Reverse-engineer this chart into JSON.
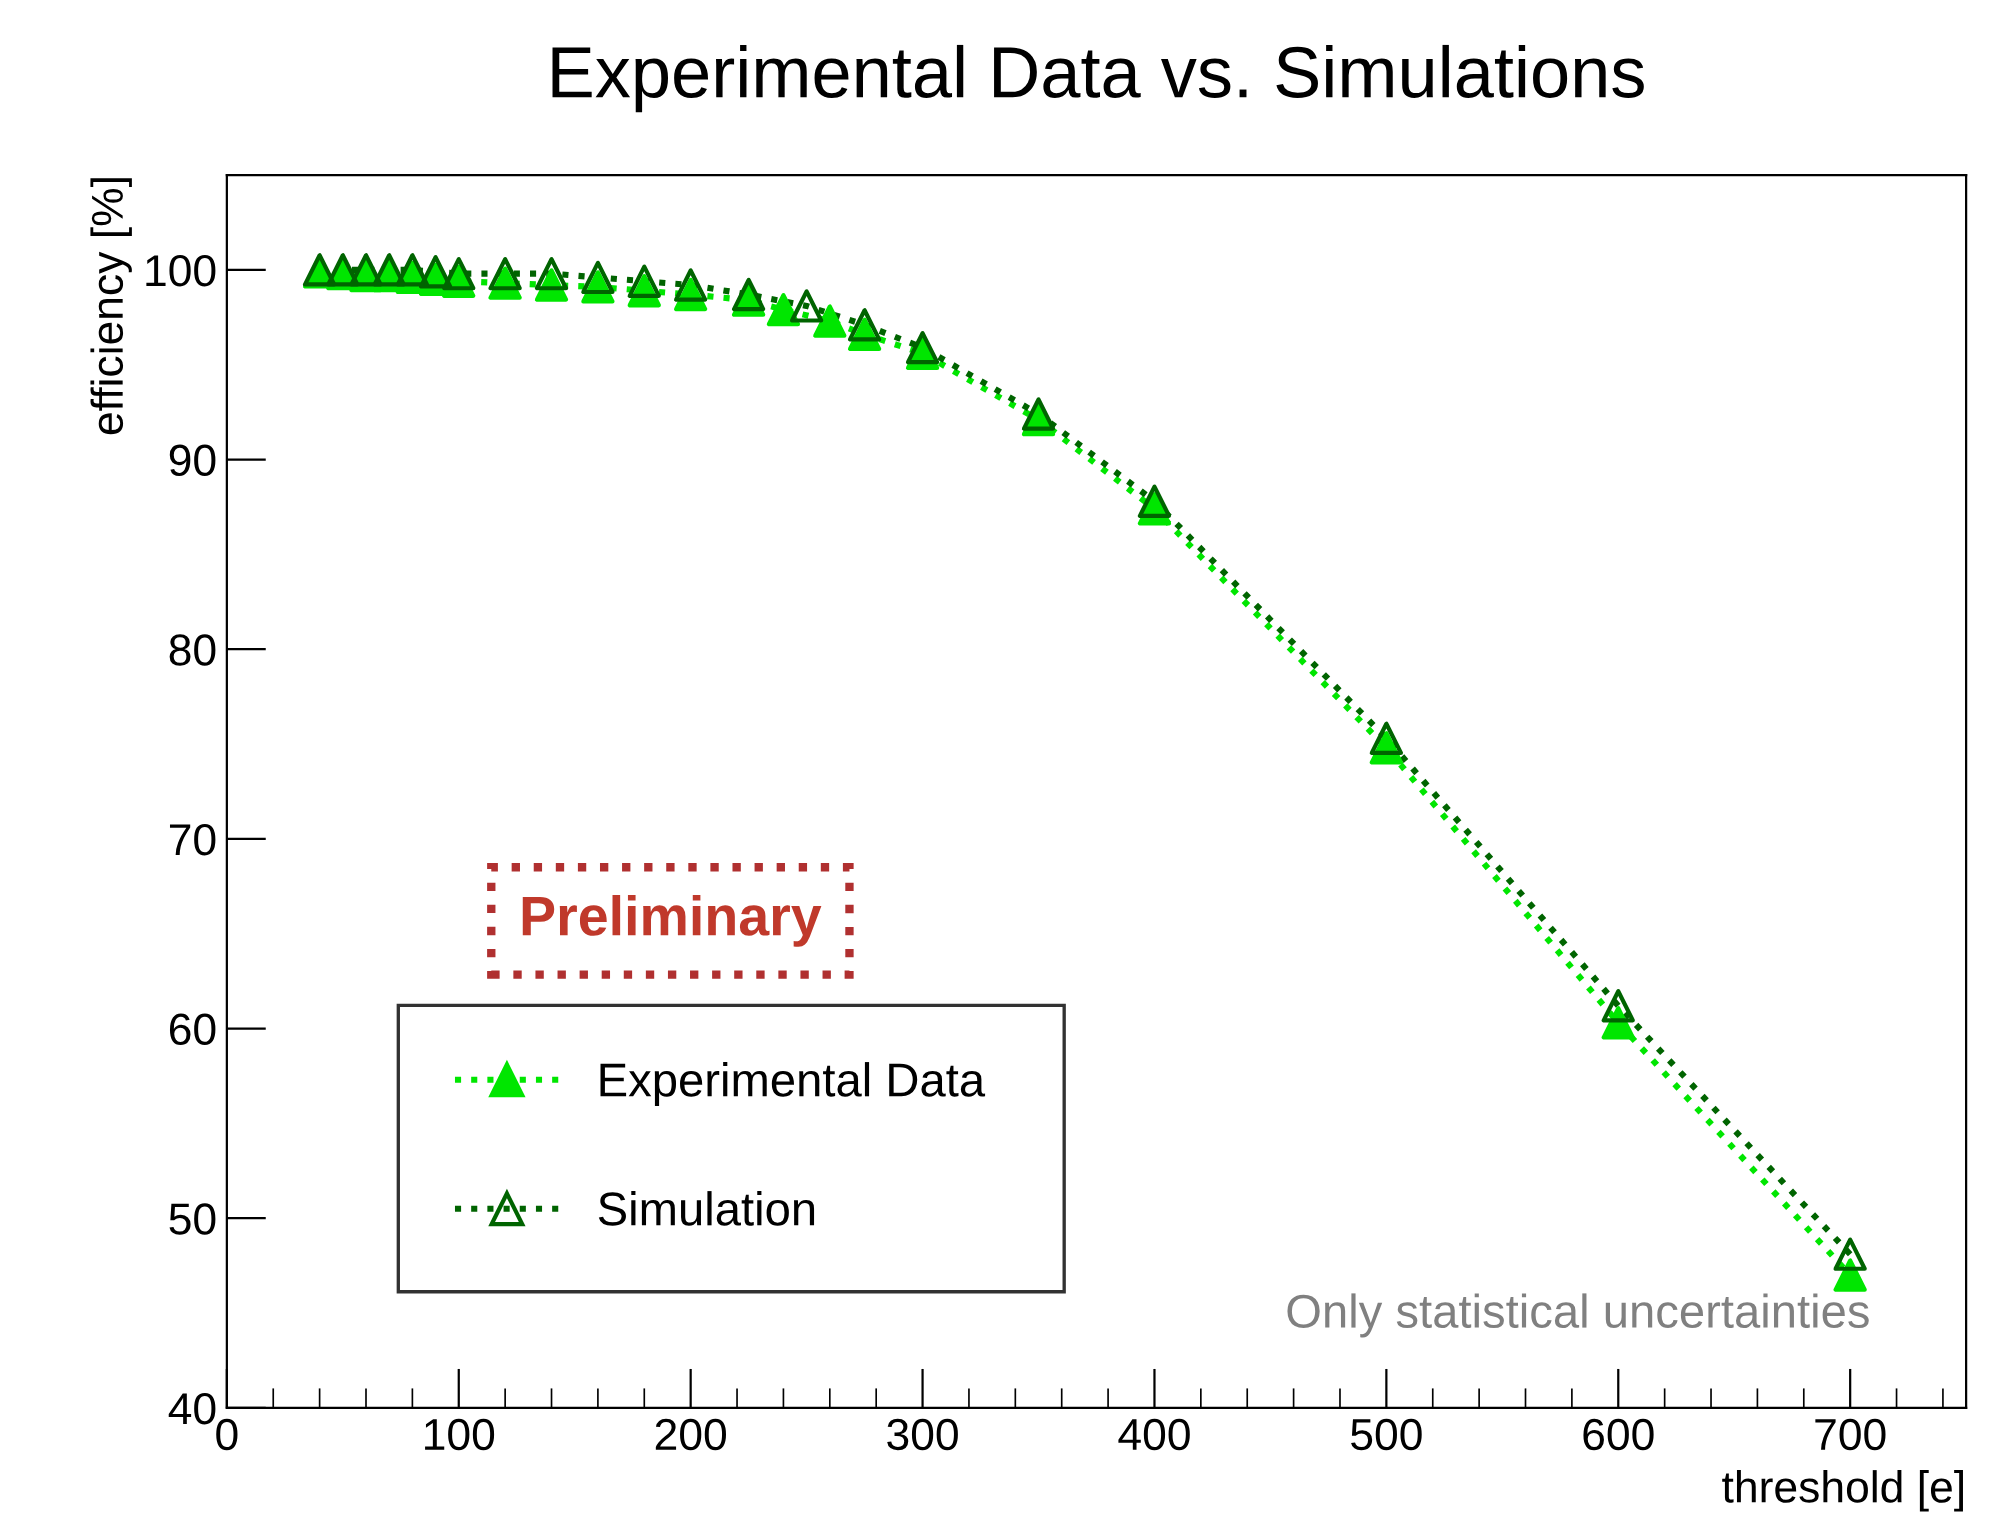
{
  "chart_data": {
    "type": "line",
    "title": "Experimental Data vs. Simulations",
    "xlabel": "threshold [e]",
    "ylabel": "efficiency [%]",
    "annotations": [
      "Preliminary",
      "Only statistical uncertainties"
    ],
    "xlim": [
      0,
      750
    ],
    "ylim": [
      40,
      105
    ],
    "xticks": [
      0,
      100,
      200,
      300,
      400,
      500,
      600,
      700
    ],
    "yticks": [
      40,
      50,
      60,
      70,
      80,
      90,
      100
    ],
    "grid": false,
    "legend": "bottom left",
    "line_style": "dotted",
    "marker": "triangle",
    "series": [
      {
        "name": "Experimental Data",
        "color": "#00e600",
        "x": [
          40,
          50,
          60,
          70,
          80,
          90,
          100,
          120,
          140,
          160,
          180,
          200,
          225,
          240,
          260,
          275,
          300,
          350,
          400,
          500,
          600,
          700
        ],
        "values": [
          99.9,
          99.8,
          99.7,
          99.7,
          99.6,
          99.5,
          99.4,
          99.3,
          99.2,
          99.1,
          98.9,
          98.7,
          98.4,
          97.9,
          97.3,
          96.6,
          95.6,
          92.1,
          87.4,
          74.8,
          60.3,
          47.0
        ]
      },
      {
        "name": "Simulation",
        "color": "#006400",
        "x": [
          40,
          50,
          60,
          70,
          80,
          90,
          100,
          120,
          140,
          160,
          180,
          200,
          225,
          250,
          275,
          300,
          350,
          400,
          500,
          600,
          700
        ],
        "values": [
          100.0,
          100.0,
          100.0,
          100.0,
          100.0,
          99.9,
          99.8,
          99.8,
          99.8,
          99.6,
          99.4,
          99.2,
          98.7,
          98.1,
          97.1,
          95.9,
          92.4,
          87.8,
          75.3,
          61.2,
          48.1
        ]
      }
    ]
  }
}
